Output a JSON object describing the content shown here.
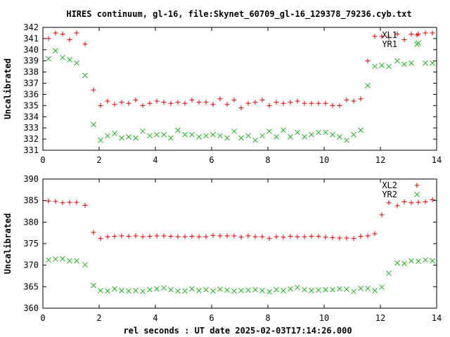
{
  "title": "HIRES continuum, gl-16, file:Skynet_60709_gl-16_129378_79236.cyb.txt",
  "xlabel": "rel seconds : UT date 2025-02-03T17:14:26.000",
  "colors": {
    "first": "#e00000",
    "second": "#20b020"
  },
  "chart_data": [
    {
      "type": "scatter",
      "ylabel": "Uncalibrated",
      "xlim": [
        0,
        14
      ],
      "ylim": [
        331,
        342
      ],
      "xticks": [
        "0",
        "2",
        "4",
        "6",
        "8",
        "10",
        "12",
        "14"
      ],
      "yticks": [
        "331",
        "332",
        "333",
        "334",
        "335",
        "336",
        "337",
        "338",
        "339",
        "340",
        "341",
        "342"
      ],
      "legend_position": "top-right",
      "series": [
        {
          "name": "XL1",
          "marker": "plus",
          "x": [
            0.2,
            0.45,
            0.7,
            0.95,
            1.2,
            1.5,
            1.8,
            2.05,
            2.3,
            2.55,
            2.8,
            3.05,
            3.3,
            3.55,
            3.8,
            4.05,
            4.3,
            4.55,
            4.8,
            5.05,
            5.3,
            5.55,
            5.8,
            6.05,
            6.3,
            6.55,
            6.8,
            7.05,
            7.3,
            7.55,
            7.8,
            8.05,
            8.3,
            8.55,
            8.8,
            9.05,
            9.3,
            9.55,
            9.8,
            10.05,
            10.3,
            10.55,
            10.8,
            11.05,
            11.3,
            11.55,
            11.8,
            12.05,
            12.3,
            12.6,
            12.85,
            13.1,
            13.35,
            13.6,
            13.85
          ],
          "y": [
            341.0,
            341.5,
            341.4,
            340.9,
            341.5,
            340.5,
            336.4,
            335.0,
            335.4,
            335.1,
            335.3,
            335.2,
            335.5,
            335.0,
            335.2,
            335.4,
            335.3,
            335.2,
            335.3,
            335.2,
            335.5,
            335.3,
            335.3,
            335.1,
            335.6,
            335.1,
            335.5,
            334.8,
            335.2,
            335.3,
            335.5,
            335.0,
            335.3,
            335.2,
            335.3,
            335.4,
            335.2,
            335.2,
            335.2,
            335.2,
            335.0,
            335.0,
            335.5,
            335.4,
            335.6,
            339.0,
            341.2,
            341.2,
            341.1,
            341.4,
            340.9,
            341.4,
            341.4,
            341.5,
            341.5
          ]
        },
        {
          "name": "YR1",
          "marker": "cross",
          "x": [
            0.2,
            0.45,
            0.7,
            0.95,
            1.2,
            1.5,
            1.8,
            2.05,
            2.3,
            2.55,
            2.8,
            3.05,
            3.3,
            3.55,
            3.8,
            4.05,
            4.3,
            4.55,
            4.8,
            5.05,
            5.3,
            5.55,
            5.8,
            6.05,
            6.3,
            6.55,
            6.8,
            7.05,
            7.3,
            7.55,
            7.8,
            8.05,
            8.3,
            8.55,
            8.8,
            9.05,
            9.3,
            9.55,
            9.8,
            10.05,
            10.3,
            10.55,
            10.8,
            11.05,
            11.3,
            11.55,
            11.8,
            12.05,
            12.3,
            12.6,
            12.85,
            13.1,
            13.35,
            13.6,
            13.85
          ],
          "y": [
            339.2,
            339.9,
            339.3,
            339.1,
            338.8,
            337.7,
            333.3,
            331.9,
            332.3,
            332.5,
            332.1,
            332.2,
            332.1,
            332.7,
            332.3,
            332.4,
            332.4,
            332.1,
            332.8,
            332.4,
            332.4,
            332.2,
            332.3,
            332.4,
            332.3,
            332.1,
            332.7,
            332.1,
            332.3,
            331.9,
            332.3,
            332.7,
            332.2,
            332.8,
            332.2,
            332.6,
            332.2,
            332.4,
            332.6,
            332.6,
            332.4,
            332.2,
            331.9,
            332.4,
            332.8,
            336.8,
            338.5,
            338.6,
            338.5,
            339.0,
            338.7,
            338.8,
            340.6,
            338.8,
            338.8
          ]
        }
      ]
    },
    {
      "type": "scatter",
      "ylabel": "Uncalibrated",
      "xlim": [
        0,
        14
      ],
      "ylim": [
        360,
        390
      ],
      "xticks": [
        "0",
        "2",
        "4",
        "6",
        "8",
        "10",
        "12",
        "14"
      ],
      "yticks": [
        "360",
        "365",
        "370",
        "375",
        "380",
        "385",
        "390"
      ],
      "legend_position": "top-right",
      "series": [
        {
          "name": "XL2",
          "marker": "plus",
          "x": [
            0.2,
            0.45,
            0.7,
            0.95,
            1.2,
            1.5,
            1.8,
            2.05,
            2.3,
            2.55,
            2.8,
            3.05,
            3.3,
            3.55,
            3.8,
            4.05,
            4.3,
            4.55,
            4.8,
            5.05,
            5.3,
            5.55,
            5.8,
            6.05,
            6.3,
            6.55,
            6.8,
            7.05,
            7.3,
            7.55,
            7.8,
            8.05,
            8.3,
            8.55,
            8.8,
            9.05,
            9.3,
            9.55,
            9.8,
            10.05,
            10.3,
            10.55,
            10.8,
            11.05,
            11.3,
            11.55,
            11.8,
            12.05,
            12.3,
            12.6,
            12.85,
            13.1,
            13.35,
            13.6,
            13.85
          ],
          "y": [
            384.9,
            384.8,
            384.5,
            384.6,
            384.6,
            383.9,
            377.6,
            376.2,
            376.6,
            376.7,
            376.8,
            376.7,
            376.8,
            376.6,
            376.7,
            376.8,
            376.8,
            376.7,
            376.6,
            376.6,
            376.7,
            376.6,
            376.6,
            376.9,
            376.8,
            376.8,
            376.8,
            376.5,
            376.8,
            376.6,
            376.6,
            376.2,
            376.6,
            376.5,
            376.7,
            376.6,
            376.6,
            376.7,
            376.7,
            376.5,
            376.4,
            376.3,
            376.3,
            376.2,
            376.7,
            376.8,
            377.3,
            381.7,
            384.5,
            383.8,
            384.7,
            384.5,
            384.6,
            384.7,
            385.2
          ]
        },
        {
          "name": "YR2",
          "marker": "cross",
          "x": [
            0.2,
            0.45,
            0.7,
            0.95,
            1.2,
            1.5,
            1.8,
            2.05,
            2.3,
            2.55,
            2.8,
            3.05,
            3.3,
            3.55,
            3.8,
            4.05,
            4.3,
            4.55,
            4.8,
            5.05,
            5.3,
            5.55,
            5.8,
            6.05,
            6.3,
            6.55,
            6.8,
            7.05,
            7.3,
            7.55,
            7.8,
            8.05,
            8.3,
            8.55,
            8.8,
            9.05,
            9.3,
            9.55,
            9.8,
            10.05,
            10.3,
            10.55,
            10.8,
            11.05,
            11.3,
            11.55,
            11.8,
            12.05,
            12.3,
            12.6,
            12.85,
            13.1,
            13.35,
            13.6,
            13.85
          ],
          "y": [
            371.2,
            371.4,
            371.5,
            371.0,
            371.0,
            370.1,
            365.3,
            364.1,
            364.0,
            364.5,
            364.1,
            364.0,
            364.1,
            363.9,
            364.3,
            364.5,
            364.7,
            364.3,
            364.0,
            364.0,
            364.5,
            364.1,
            364.3,
            364.0,
            364.4,
            364.2,
            364.0,
            364.1,
            364.2,
            364.3,
            364.1,
            363.8,
            364.3,
            364.1,
            364.5,
            364.8,
            364.3,
            364.1,
            364.2,
            364.3,
            364.3,
            364.5,
            364.4,
            363.9,
            364.6,
            364.6,
            364.1,
            364.9,
            368.1,
            370.5,
            370.4,
            371.0,
            370.9,
            371.2,
            371.0
          ]
        }
      ]
    }
  ]
}
